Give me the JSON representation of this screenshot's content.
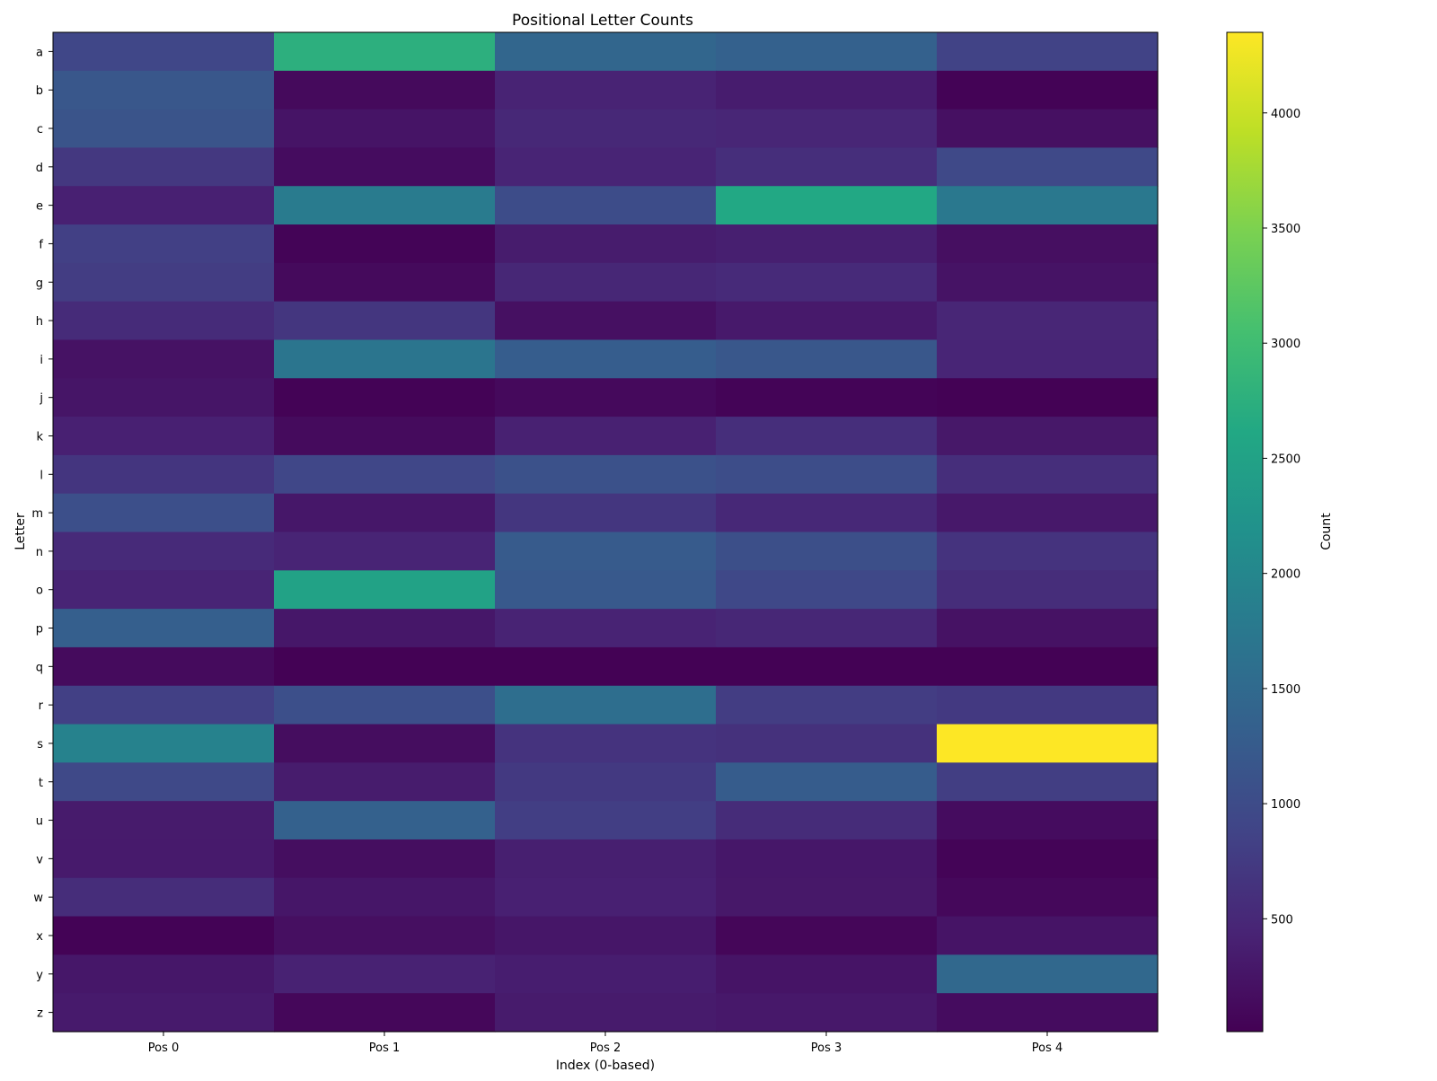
{
  "chart_data": {
    "type": "heatmap",
    "title": "Positional Letter Counts",
    "xlabel": "Index (0-based)",
    "ylabel": "Letter",
    "x_categories": [
      "Pos 0",
      "Pos 1",
      "Pos 2",
      "Pos 3",
      "Pos 4"
    ],
    "y_categories": [
      "a",
      "b",
      "c",
      "d",
      "e",
      "f",
      "g",
      "h",
      "i",
      "j",
      "k",
      "l",
      "m",
      "n",
      "o",
      "p",
      "q",
      "r",
      "s",
      "t",
      "u",
      "v",
      "w",
      "x",
      "y",
      "z"
    ],
    "values": [
      [
        930,
        2750,
        1430,
        1340,
        860
      ],
      [
        1180,
        120,
        430,
        350,
        40
      ],
      [
        1130,
        250,
        500,
        470,
        200
      ],
      [
        710,
        150,
        450,
        580,
        960
      ],
      [
        400,
        1800,
        1010,
        2610,
        1740
      ],
      [
        820,
        50,
        340,
        380,
        180
      ],
      [
        780,
        120,
        480,
        530,
        230
      ],
      [
        540,
        690,
        190,
        310,
        470
      ],
      [
        220,
        1690,
        1280,
        1180,
        460
      ],
      [
        260,
        40,
        110,
        50,
        20
      ],
      [
        400,
        130,
        410,
        580,
        290
      ],
      [
        680,
        920,
        1080,
        1020,
        580
      ],
      [
        1060,
        280,
        690,
        500,
        300
      ],
      [
        530,
        450,
        1240,
        1050,
        650
      ],
      [
        450,
        2500,
        1220,
        950,
        570
      ],
      [
        1310,
        280,
        430,
        480,
        220
      ],
      [
        130,
        20,
        20,
        20,
        20
      ],
      [
        820,
        1060,
        1580,
        780,
        730
      ],
      [
        1920,
        160,
        650,
        620,
        4350
      ],
      [
        960,
        340,
        730,
        1270,
        790
      ],
      [
        330,
        1350,
        800,
        550,
        150
      ],
      [
        320,
        170,
        380,
        280,
        50
      ],
      [
        570,
        270,
        400,
        290,
        100
      ],
      [
        40,
        180,
        270,
        70,
        250
      ],
      [
        280,
        420,
        360,
        250,
        1470
      ],
      [
        320,
        90,
        330,
        300,
        150
      ]
    ],
    "colorbar": {
      "label": "Count",
      "vmin": 10,
      "vmax": 4350,
      "ticks": [
        500,
        1000,
        1500,
        2000,
        2500,
        3000,
        3500,
        4000
      ],
      "colormap": "viridis"
    },
    "grid": false,
    "legend": "none"
  }
}
